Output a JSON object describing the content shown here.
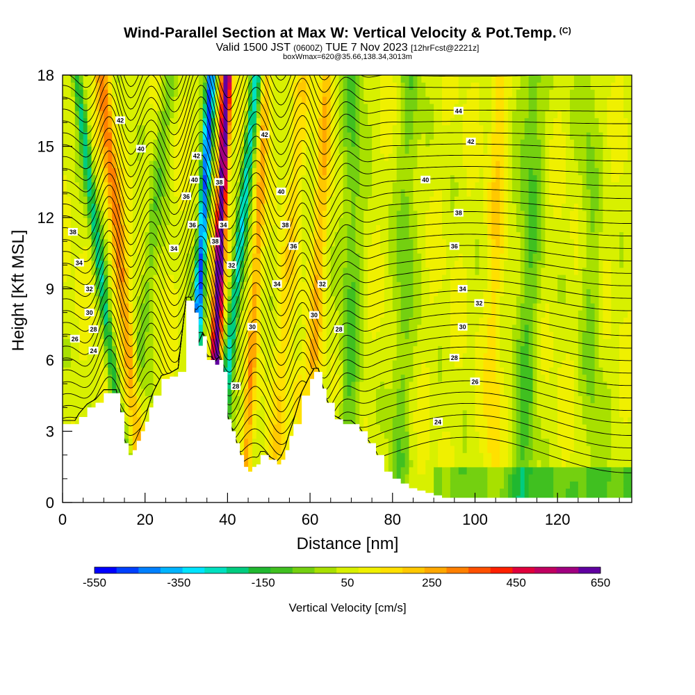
{
  "title": "Wind-Parallel Section at Max W: Vertical Velocity & Pot.Temp.",
  "title_mark": "(C)",
  "subtitle_main": "Valid 1500 JST",
  "subtitle_z": "(0600Z)",
  "subtitle_date": "TUE 7 Nov 2023",
  "subtitle_fcst": "[12hrFcst@2221z]",
  "subtitle2": "boxWmax=620@35.66,138.34,3013m",
  "colors": {
    "palette": [
      "#0000ff",
      "#0040ff",
      "#0080ff",
      "#00b4ff",
      "#00e4ff",
      "#00e0c0",
      "#00cc80",
      "#20b830",
      "#40c020",
      "#74d010",
      "#a8e000",
      "#d8f000",
      "#f0f000",
      "#ffe000",
      "#ffc800",
      "#ffa800",
      "#ff8000",
      "#ff5000",
      "#ff2000",
      "#e0003c",
      "#c00060",
      "#a00080",
      "#6000a0"
    ],
    "terrain": "#ffffff",
    "contour": "#000000"
  },
  "chart_data": {
    "type": "heatmap",
    "xlabel": "Distance [nm]",
    "ylabel": "Height [Kft MSL]",
    "xlim": [
      0,
      138
    ],
    "ylim": [
      0,
      18
    ],
    "x_ticks": [
      "0",
      "20",
      "40",
      "60",
      "80",
      "100",
      "120"
    ],
    "y_ticks": [
      "0",
      "3",
      "6",
      "9",
      "12",
      "15",
      "18"
    ],
    "colorbar": {
      "title": "Vertical Velocity [cm/s]",
      "labels": [
        "-550",
        "-350",
        "-150",
        "50",
        "250",
        "450",
        "650"
      ],
      "min": -550,
      "max": 650,
      "step": 50
    },
    "terrain_kft": [
      [
        0,
        3.3
      ],
      [
        3,
        3.3
      ],
      [
        4,
        3.6
      ],
      [
        6,
        4.0
      ],
      [
        8,
        4.2
      ],
      [
        10,
        4.6
      ],
      [
        12,
        4.6
      ],
      [
        13,
        4.6
      ],
      [
        14,
        3.8
      ],
      [
        15,
        2.5
      ],
      [
        16,
        2.0
      ],
      [
        17,
        2.2
      ],
      [
        18,
        2.6
      ],
      [
        19,
        3.0
      ],
      [
        20,
        3.4
      ],
      [
        21,
        4.0
      ],
      [
        22,
        4.5
      ],
      [
        24,
        5.2
      ],
      [
        26,
        5.3
      ],
      [
        28,
        5.5
      ],
      [
        30,
        8.5
      ],
      [
        31,
        8.5
      ],
      [
        32,
        8.0
      ],
      [
        33,
        6.6
      ],
      [
        34,
        7.0
      ],
      [
        35,
        6.0
      ],
      [
        36,
        6.0
      ],
      [
        37,
        5.8
      ],
      [
        38,
        6.0
      ],
      [
        39,
        5.5
      ],
      [
        40,
        3.5
      ],
      [
        41,
        3.0
      ],
      [
        42,
        2.5
      ],
      [
        43,
        2.0
      ],
      [
        44,
        1.5
      ],
      [
        45,
        1.3
      ],
      [
        46,
        1.5
      ],
      [
        47,
        1.6
      ],
      [
        48,
        2.0
      ],
      [
        49,
        2.0
      ],
      [
        50,
        1.8
      ],
      [
        52,
        1.6
      ],
      [
        53,
        1.8
      ],
      [
        54,
        2.2
      ],
      [
        55,
        2.8
      ],
      [
        56,
        3.3
      ],
      [
        58,
        4.5
      ],
      [
        60,
        5.2
      ],
      [
        61,
        5.5
      ],
      [
        62,
        5.5
      ],
      [
        63,
        4.8
      ],
      [
        64,
        4.2
      ],
      [
        66,
        3.5
      ],
      [
        68,
        3.3
      ],
      [
        70,
        3.3
      ],
      [
        72,
        3.0
      ],
      [
        74,
        2.5
      ],
      [
        76,
        2.0
      ],
      [
        78,
        1.3
      ],
      [
        80,
        1.0
      ],
      [
        82,
        0.8
      ],
      [
        84,
        0.6
      ],
      [
        86,
        0.5
      ],
      [
        88,
        0.4
      ],
      [
        90,
        0.3
      ],
      [
        92,
        0.2
      ],
      [
        138,
        0.2
      ]
    ],
    "theta_levels_c": [
      24,
      26,
      28,
      30,
      32,
      34,
      36,
      38,
      40,
      42,
      44
    ],
    "theta_labels": [
      {
        "text": "42",
        "x": 14,
        "y": 16.1
      },
      {
        "text": "40",
        "x": 19,
        "y": 14.9
      },
      {
        "text": "38",
        "x": 2.5,
        "y": 11.4
      },
      {
        "text": "34",
        "x": 4,
        "y": 10.1
      },
      {
        "text": "32",
        "x": 6.5,
        "y": 9.0
      },
      {
        "text": "30",
        "x": 6.5,
        "y": 8.0
      },
      {
        "text": "28",
        "x": 7.5,
        "y": 7.3
      },
      {
        "text": "26",
        "x": 3,
        "y": 6.9
      },
      {
        "text": "24",
        "x": 7.5,
        "y": 6.4
      },
      {
        "text": "34",
        "x": 27,
        "y": 10.7
      },
      {
        "text": "36",
        "x": 30,
        "y": 12.9
      },
      {
        "text": "36",
        "x": 31.5,
        "y": 11.7
      },
      {
        "text": "40",
        "x": 32,
        "y": 13.6
      },
      {
        "text": "42",
        "x": 32.5,
        "y": 14.6
      },
      {
        "text": "38",
        "x": 38,
        "y": 13.5
      },
      {
        "text": "34",
        "x": 39,
        "y": 11.7
      },
      {
        "text": "38",
        "x": 37,
        "y": 11.0
      },
      {
        "text": "32",
        "x": 41,
        "y": 10.0
      },
      {
        "text": "42",
        "x": 49,
        "y": 15.5
      },
      {
        "text": "40",
        "x": 53,
        "y": 13.1
      },
      {
        "text": "38",
        "x": 54,
        "y": 11.7
      },
      {
        "text": "36",
        "x": 56,
        "y": 10.8
      },
      {
        "text": "34",
        "x": 52,
        "y": 9.2
      },
      {
        "text": "30",
        "x": 46,
        "y": 7.4
      },
      {
        "text": "28",
        "x": 42,
        "y": 4.9
      },
      {
        "text": "32",
        "x": 63,
        "y": 9.2
      },
      {
        "text": "30",
        "x": 61,
        "y": 7.9
      },
      {
        "text": "28",
        "x": 67,
        "y": 7.3
      },
      {
        "text": "44",
        "x": 96,
        "y": 16.5
      },
      {
        "text": "42",
        "x": 99,
        "y": 15.2
      },
      {
        "text": "40",
        "x": 88,
        "y": 13.6
      },
      {
        "text": "38",
        "x": 96,
        "y": 12.2
      },
      {
        "text": "36",
        "x": 95,
        "y": 10.8
      },
      {
        "text": "34",
        "x": 97,
        "y": 9.0
      },
      {
        "text": "32",
        "x": 101,
        "y": 8.4
      },
      {
        "text": "30",
        "x": 97,
        "y": 7.4
      },
      {
        "text": "28",
        "x": 95,
        "y": 6.1
      },
      {
        "text": "26",
        "x": 100,
        "y": 5.1
      },
      {
        "text": "24",
        "x": 91,
        "y": 3.4
      }
    ]
  }
}
